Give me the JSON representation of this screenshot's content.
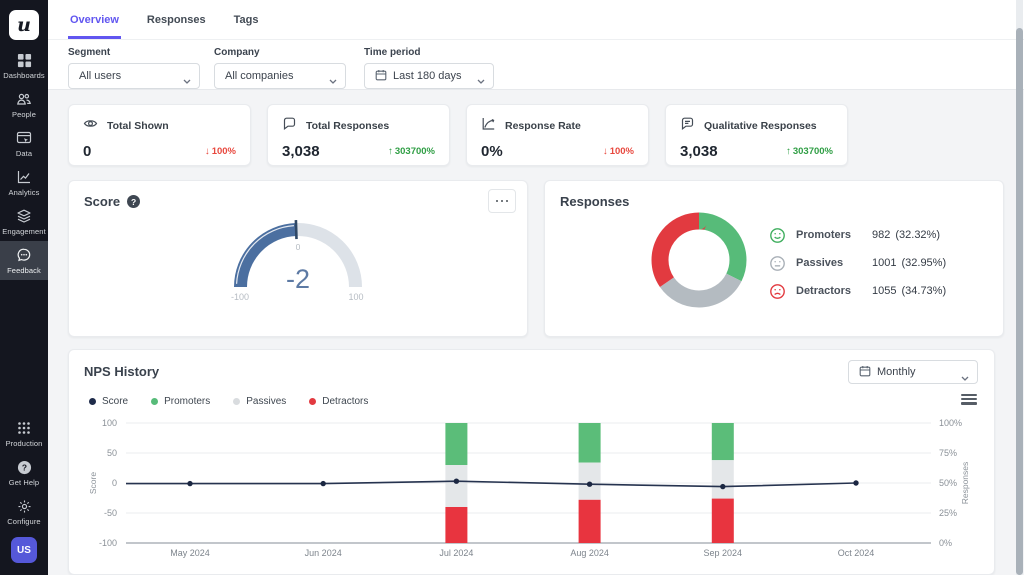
{
  "theme": {
    "accent_purple": "#6156f0",
    "sidebar_bg": "#14161f",
    "positive_green": "#2f9e44",
    "negative_red": "#e8483e",
    "promoter_green": "#57bb79",
    "passive_gray": "#b4bbc1",
    "detractor_red": "#e23a40",
    "score_line_navy": "#26334f",
    "gauge_blue": "#4b6fa0",
    "page_bg": "#f3f4f6"
  },
  "sidebar": {
    "logo_text": "u",
    "items": [
      {
        "label": "Dashboards",
        "icon": "grid-icon",
        "active": false
      },
      {
        "label": "People",
        "icon": "people-icon",
        "active": false
      },
      {
        "label": "Data",
        "icon": "data-window-icon",
        "active": false
      },
      {
        "label": "Analytics",
        "icon": "line-chart-icon",
        "active": false
      },
      {
        "label": "Engagement",
        "icon": "layers-icon",
        "active": false
      },
      {
        "label": "Feedback",
        "icon": "chat-bubble-icon",
        "active": true
      }
    ],
    "bottom_items": [
      {
        "label": "Production",
        "icon": "dots-grid-icon"
      },
      {
        "label": "Get Help",
        "icon": "question-circle-icon"
      },
      {
        "label": "Configure",
        "icon": "gear-icon"
      }
    ],
    "avatar_text": "US"
  },
  "header": {
    "tabs": [
      {
        "label": "Overview",
        "active": true
      },
      {
        "label": "Responses",
        "active": false
      },
      {
        "label": "Tags",
        "active": false
      }
    ]
  },
  "filters": {
    "segment_label": "Segment",
    "segment_value": "All users",
    "company_label": "Company",
    "company_value": "All companies",
    "time_label": "Time period",
    "time_value": "Last 180 days"
  },
  "stat_cards": [
    {
      "title": "Total Shown",
      "icon": "eye-icon",
      "value": "0",
      "arrow": "↓",
      "delta": "100%",
      "direction": "down"
    },
    {
      "title": "Total Responses",
      "icon": "chat-bubble-icon",
      "value": "3,038",
      "arrow": "↑",
      "delta": "303700%",
      "direction": "up"
    },
    {
      "title": "Response Rate",
      "icon": "rate-chart-icon",
      "value": "0%",
      "arrow": "↓",
      "delta": "100%",
      "direction": "down"
    },
    {
      "title": "Qualitative Responses",
      "icon": "chat-lines-icon",
      "value": "3,038",
      "arrow": "↑",
      "delta": "303700%",
      "direction": "up"
    }
  ],
  "score_card": {
    "title": "Score",
    "value_label": "-2",
    "min_label": "-100",
    "mid_label": "0",
    "max_label": "100"
  },
  "responses_card": {
    "title": "Responses",
    "legend": [
      {
        "label": "Promoters",
        "count": "982",
        "pct": "(32.32%)",
        "face": "happy",
        "face_color": "#3fae5e"
      },
      {
        "label": "Passives",
        "count": "1001",
        "pct": "(32.95%)",
        "face": "neutral",
        "face_color": "#a9b0b7"
      },
      {
        "label": "Detractors",
        "count": "1055",
        "pct": "(34.73%)",
        "face": "sad",
        "face_color": "#e23a40"
      }
    ]
  },
  "nps_history": {
    "title": "NPS History",
    "period_value": "Monthly",
    "legend": [
      {
        "label": "Score",
        "color": "#1e2b4a"
      },
      {
        "label": "Promoters",
        "color": "#57bb79"
      },
      {
        "label": "Passives",
        "color": "#d9dcdf"
      },
      {
        "label": "Detractors",
        "color": "#e23a40"
      }
    ]
  },
  "chart_data": [
    {
      "id": "score-gauge",
      "type": "gauge",
      "title": "Score",
      "min": -100,
      "max": 100,
      "value": -2,
      "tick_labels": [
        "-100",
        "0",
        "100"
      ],
      "filled_color": "#4b6fa0",
      "track_color": "#dde2e8"
    },
    {
      "id": "responses-donut",
      "type": "pie",
      "donut": true,
      "title": "Responses",
      "labels": [
        "Promoters",
        "Passives",
        "Detractors"
      ],
      "values": [
        982,
        1001,
        1055
      ],
      "percents": [
        32.32,
        32.95,
        34.73
      ],
      "colors": [
        "#57bb79",
        "#b4bbc1",
        "#e23a40"
      ],
      "start_angle": "top",
      "direction": "clockwise"
    },
    {
      "id": "nps-history",
      "type": "bar",
      "subtype": "stacked-percent-bars-with-line",
      "title": "NPS History",
      "categories": [
        "May 2024",
        "Jun 2024",
        "Jul 2024",
        "Aug 2024",
        "Sep 2024",
        "Oct 2024"
      ],
      "series": [
        {
          "name": "Score",
          "type": "line",
          "axis": "left",
          "color": "#26334f",
          "values": [
            -1,
            -1,
            3,
            -2,
            -6,
            0
          ]
        },
        {
          "name": "Promoters",
          "type": "bar",
          "axis": "right",
          "color": "#5bbd79",
          "values": [
            null,
            null,
            35,
            33,
            31,
            null
          ]
        },
        {
          "name": "Passives",
          "type": "bar",
          "axis": "right",
          "color": "#e4e7e9",
          "values": [
            null,
            null,
            35,
            31,
            32,
            null
          ]
        },
        {
          "name": "Detractors",
          "type": "bar",
          "axis": "right",
          "color": "#e8343f",
          "values": [
            null,
            null,
            30,
            36,
            37,
            null
          ]
        }
      ],
      "left_axis": {
        "label": "Score",
        "range": [
          -100,
          100
        ],
        "ticks": [
          100,
          50,
          0,
          -50,
          -100
        ]
      },
      "right_axis": {
        "label": "Responses",
        "range": [
          0,
          100
        ],
        "tick_labels": [
          "100%",
          "75%",
          "50%",
          "25%",
          "0%"
        ]
      },
      "grid": true,
      "legend_position": "top-left"
    }
  ]
}
